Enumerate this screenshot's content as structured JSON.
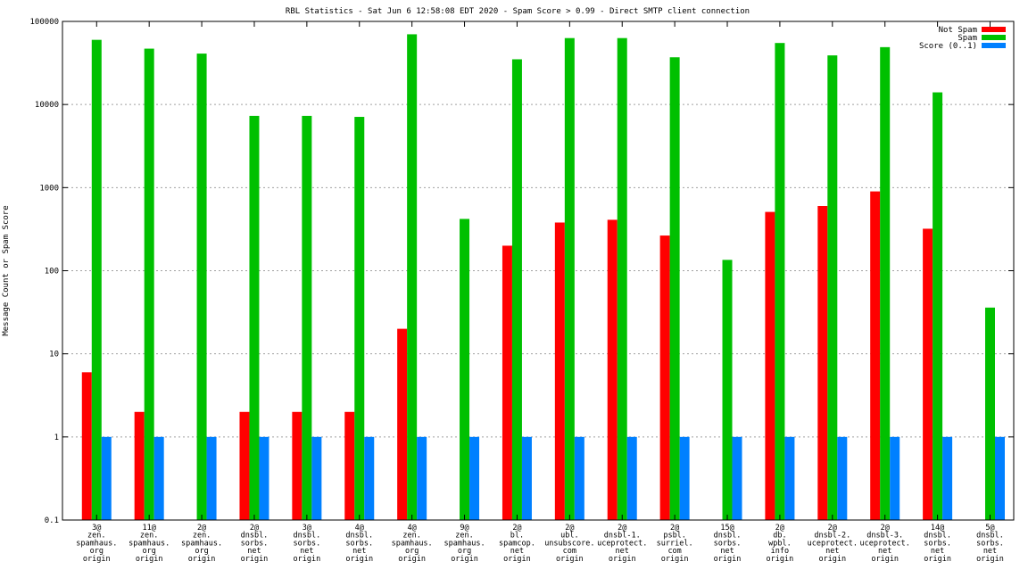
{
  "chart_data": {
    "type": "bar",
    "title": "RBL Statistics - Sat Jun  6 12:58:08 EDT 2020 - Spam Score > 0.99 - Direct SMTP client connection",
    "xlabel": "",
    "ylabel": "Message Count or Spam Score",
    "yscale": "log",
    "ylim": [
      0.1,
      100000
    ],
    "yticks": [
      "0.1",
      "1",
      "10",
      "100",
      "1000",
      "10000",
      "100000"
    ],
    "grid": true,
    "legend_position": "top-right",
    "categories": [
      [
        "3@",
        "zen.",
        "spamhaus.",
        "org",
        "origin"
      ],
      [
        "11@",
        "zen.",
        "spamhaus.",
        "org",
        "origin"
      ],
      [
        "2@",
        "zen.",
        "spamhaus.",
        "org",
        "origin"
      ],
      [
        "2@",
        "dnsbl.",
        "sorbs.",
        "net",
        "origin"
      ],
      [
        "3@",
        "dnsbl.",
        "sorbs.",
        "net",
        "origin"
      ],
      [
        "4@",
        "dnsbl.",
        "sorbs.",
        "net",
        "origin"
      ],
      [
        "4@",
        "zen.",
        "spamhaus.",
        "org",
        "origin"
      ],
      [
        "9@",
        "zen.",
        "spamhaus.",
        "org",
        "origin"
      ],
      [
        "2@",
        "bl.",
        "spamcop.",
        "net",
        "origin"
      ],
      [
        "2@",
        "ubl.",
        "unsubscore.",
        "com",
        "origin"
      ],
      [
        "2@",
        "dnsbl-1.",
        "uceprotect.",
        "net",
        "origin"
      ],
      [
        "2@",
        "psbl.",
        "surriel.",
        "com",
        "origin"
      ],
      [
        "15@",
        "dnsbl.",
        "sorbs.",
        "net",
        "origin"
      ],
      [
        "2@",
        "db.",
        "wpbl.",
        "info",
        "origin"
      ],
      [
        "2@",
        "dnsbl-2.",
        "uceprotect.",
        "net",
        "origin"
      ],
      [
        "2@",
        "dnsbl-3.",
        "uceprotect.",
        "net",
        "origin"
      ],
      [
        "14@",
        "dnsbl.",
        "sorbs.",
        "net",
        "origin"
      ],
      [
        "5@",
        "dnsbl.",
        "sorbs.",
        "net",
        "origin"
      ]
    ],
    "series": [
      {
        "name": "Not Spam",
        "color": "#ff0000",
        "values": [
          6,
          2,
          null,
          2,
          2,
          2,
          20,
          null,
          200,
          380,
          410,
          265,
          null,
          510,
          600,
          900,
          320,
          null
        ]
      },
      {
        "name": "Spam",
        "color": "#00c000",
        "values": [
          60000,
          47000,
          41000,
          7300,
          7300,
          7100,
          70000,
          420,
          35000,
          63000,
          63000,
          37000,
          135,
          55000,
          39000,
          49000,
          14000,
          36
        ]
      },
      {
        "name": "Score (0..1)",
        "color": "#0080ff",
        "values": [
          1,
          1,
          1,
          1,
          1,
          1,
          1,
          1,
          1,
          1,
          1,
          1,
          1,
          1,
          1,
          1,
          1,
          1
        ]
      }
    ]
  }
}
